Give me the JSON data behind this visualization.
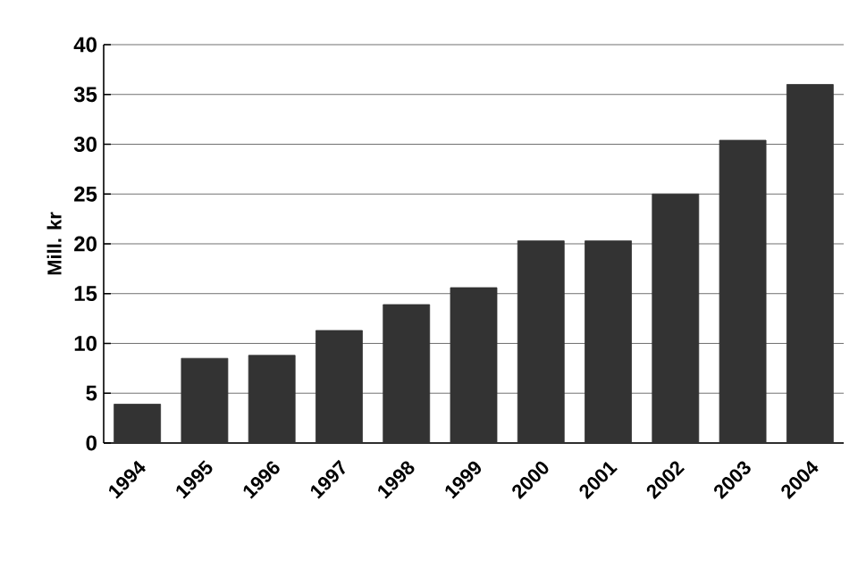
{
  "chart_data": {
    "type": "bar",
    "ylabel": "Mill. kr",
    "categories": [
      "1994",
      "1995",
      "1996",
      "1997",
      "1998",
      "1999",
      "2000",
      "2001",
      "2002",
      "2003",
      "2004"
    ],
    "values": [
      3.9,
      8.5,
      8.8,
      11.3,
      13.9,
      15.6,
      20.3,
      20.3,
      25.0,
      30.4,
      36.0
    ],
    "color": "#333333",
    "ylim": [
      0,
      40
    ],
    "yticks": [
      0,
      5,
      10,
      15,
      20,
      25,
      30,
      35,
      40
    ],
    "grid": "y"
  }
}
